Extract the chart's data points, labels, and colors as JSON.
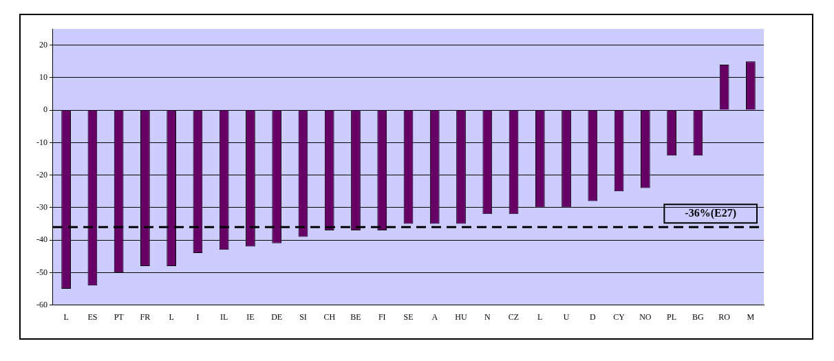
{
  "chart_data": {
    "type": "bar",
    "categories": [
      "L",
      "ES",
      "PT",
      "FR",
      "L",
      "I",
      "IL",
      "IE",
      "DE",
      "SI",
      "CH",
      "BE",
      "FI",
      "SE",
      "A",
      "HU",
      "N",
      "CZ",
      "L",
      "U",
      "D",
      "CY",
      "NO",
      "PL",
      "BG",
      "RO",
      "M"
    ],
    "values": [
      -55,
      -54,
      -50,
      -48,
      -48,
      -44,
      -43,
      -42,
      -41,
      -39,
      -37,
      -37,
      -37,
      -35,
      -35,
      -35,
      -32,
      -32,
      -30,
      -30,
      -28,
      -25,
      -24,
      -14,
      -14,
      14,
      15
    ],
    "color": "#660066",
    "ylim": [
      -60,
      25
    ],
    "yticks": [
      -60,
      -50,
      -40,
      -30,
      -20,
      -10,
      0,
      10,
      20
    ],
    "grid": "y",
    "ref_lines": [
      {
        "axis": "y",
        "value": -36,
        "label": "-36%(E27)",
        "color": "#000000",
        "line_style": "dashed"
      }
    ]
  }
}
